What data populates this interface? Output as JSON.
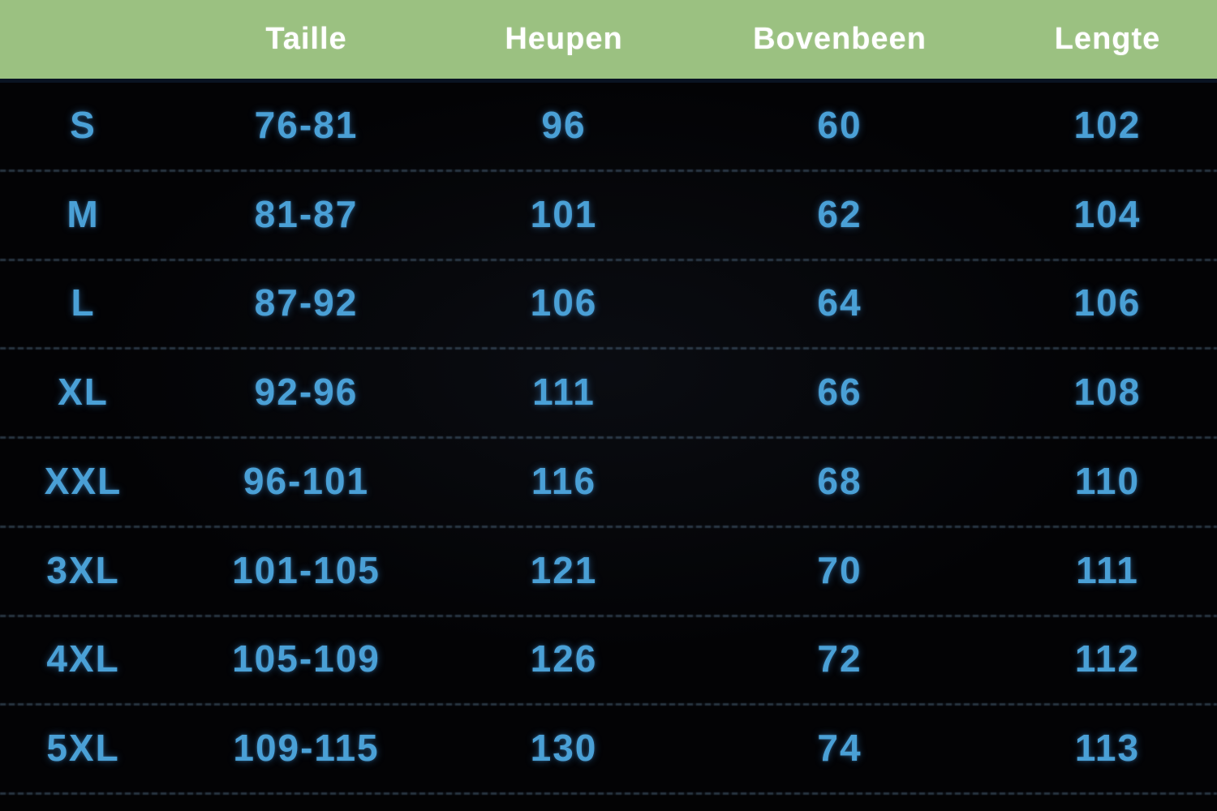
{
  "chart_data": {
    "type": "table",
    "title": "",
    "columns": [
      "",
      "Taille",
      "Heupen",
      "Bovenbeen",
      "Lengte"
    ],
    "rows": [
      [
        "S",
        "76-81",
        "96",
        "60",
        "102"
      ],
      [
        "M",
        "81-87",
        "101",
        "62",
        "104"
      ],
      [
        "L",
        "87-92",
        "106",
        "64",
        "106"
      ],
      [
        "XL",
        "92-96",
        "111",
        "66",
        "108"
      ],
      [
        "XXL",
        "96-101",
        "116",
        "68",
        "110"
      ],
      [
        "3XL",
        "101-105",
        "121",
        "70",
        "111"
      ],
      [
        "4XL",
        "105-109",
        "126",
        "72",
        "112"
      ],
      [
        "5XL",
        "109-115",
        "130",
        "74",
        "113"
      ]
    ],
    "colors": {
      "header_bg": "#9bc181",
      "header_text": "#ffffff",
      "body_bg": "#030305",
      "cell_text": "#4aa0d6",
      "separator": "#2e4a5e"
    },
    "layout": {
      "grid": "horizontal dashed separators between rows",
      "legend_position": "none"
    }
  }
}
